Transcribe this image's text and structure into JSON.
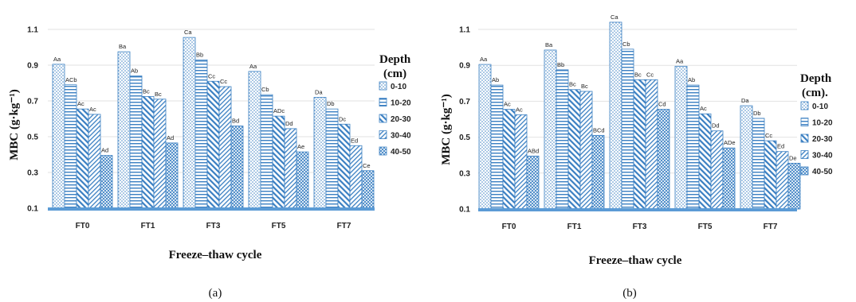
{
  "colors": {
    "bar": "#3a7fc2",
    "axis": "#5b9bd5",
    "grid": "#e2e2e2"
  },
  "chart_data": [
    {
      "type": "bar",
      "panel_label": "(a)",
      "categories": [
        "FT0",
        "FT1",
        "FT3",
        "FT5",
        "FT7"
      ],
      "xlabel": "Freeze–thaw cycle",
      "ylabel": "MBC (g·kg⁻¹)",
      "ylim": [
        0.1,
        1.1
      ],
      "yticks": [
        "0.1",
        "0.3",
        "0.5",
        "0.7",
        "0.9",
        "1.1"
      ],
      "legend_title": [
        "Depth",
        "(cm)"
      ],
      "legend_position": "right",
      "series": [
        {
          "name": "0-10",
          "pattern": "dots",
          "values": [
            0.905,
            0.975,
            1.055,
            0.865,
            0.72
          ],
          "labels": [
            "Aa",
            "Ba",
            "Ca",
            "Aa",
            "Da"
          ]
        },
        {
          "name": "10-20",
          "pattern": "hlines",
          "values": [
            0.79,
            0.84,
            0.93,
            0.735,
            0.655
          ],
          "labels": [
            "ACb",
            "Ab",
            "Bb",
            "Cb",
            "Db"
          ]
        },
        {
          "name": "20-30",
          "pattern": "diag",
          "values": [
            0.655,
            0.725,
            0.81,
            0.615,
            0.57
          ],
          "labels": [
            "Ac",
            "Bc",
            "Cc",
            "ADc",
            "Dc"
          ]
        },
        {
          "name": "30-40",
          "pattern": "backdiag",
          "values": [
            0.625,
            0.71,
            0.78,
            0.545,
            0.45
          ],
          "labels": [
            "Ac",
            "Bc",
            "Cc",
            "Dd",
            "Ed"
          ]
        },
        {
          "name": "40-50",
          "pattern": "cross",
          "values": [
            0.395,
            0.465,
            0.56,
            0.415,
            0.31
          ],
          "labels": [
            "Ad",
            "Ad",
            "Bd",
            "Ae",
            "Ce"
          ]
        }
      ]
    },
    {
      "type": "bar",
      "panel_label": "(b)",
      "categories": [
        "FT0",
        "FT1",
        "FT3",
        "FT5",
        "FT7"
      ],
      "xlabel": "Freeze–thaw cycle",
      "ylabel": "MBC (g·kg⁻¹)",
      "ylim": [
        0.1,
        1.1
      ],
      "yticks": [
        "0.1",
        "0.3",
        "0.5",
        "0.7",
        "0.9",
        "1.1"
      ],
      "legend_title": [
        "Depth",
        "(cm)."
      ],
      "legend_position": "right",
      "series": [
        {
          "name": "0-10",
          "pattern": "dots",
          "values": [
            0.905,
            0.985,
            1.14,
            0.895,
            0.675
          ],
          "labels": [
            "Aa",
            "Ba",
            "Ca",
            "Aa",
            "Da"
          ]
        },
        {
          "name": "10-20",
          "pattern": "hlines",
          "values": [
            0.79,
            0.875,
            0.99,
            0.79,
            0.605
          ],
          "labels": [
            "Ab",
            "Bb",
            "Cb",
            "Ab",
            "Db"
          ]
        },
        {
          "name": "20-30",
          "pattern": "diag",
          "values": [
            0.655,
            0.765,
            0.82,
            0.63,
            0.48
          ],
          "labels": [
            "Ac",
            "Bc",
            "Bc",
            "Ac",
            "Cc"
          ]
        },
        {
          "name": "30-40",
          "pattern": "backdiag",
          "values": [
            0.625,
            0.755,
            0.82,
            0.535,
            0.42
          ],
          "labels": [
            "Ac",
            "Bc",
            "Cc",
            "Dd",
            "Ed"
          ]
        },
        {
          "name": "40-50",
          "pattern": "cross",
          "values": [
            0.395,
            0.51,
            0.655,
            0.44,
            0.355
          ],
          "labels": [
            "ABd",
            "BCd",
            "Cd",
            "ADe",
            "De"
          ]
        }
      ]
    }
  ]
}
